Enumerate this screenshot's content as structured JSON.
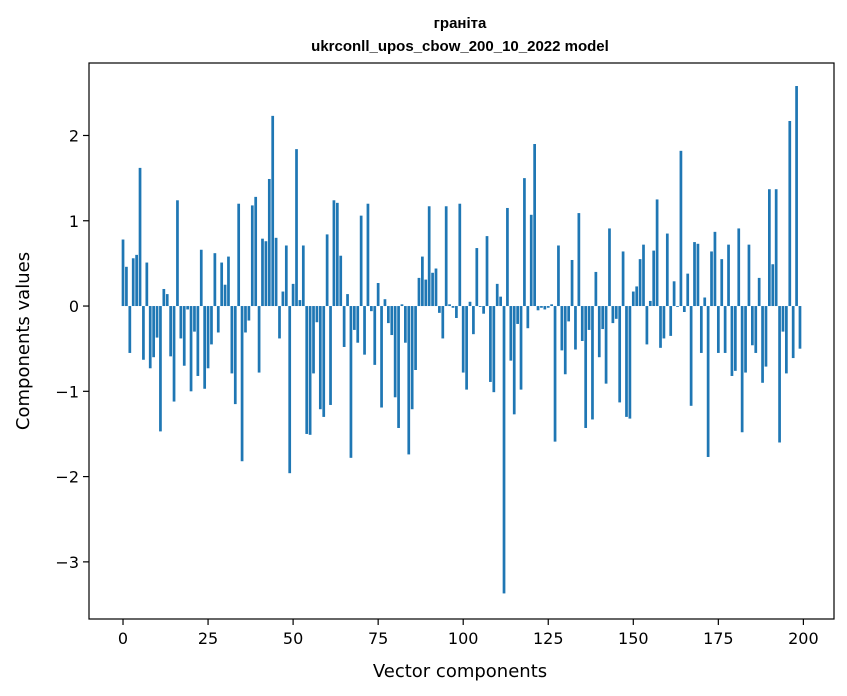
{
  "chart_data": {
    "type": "bar",
    "title_line1": "граніта",
    "title_line2": "ukrconll_upos_cbow_200_10_2022 model",
    "xlabel": "Vector components",
    "ylabel": "Components values",
    "xlim": [
      -10,
      209
    ],
    "ylim": [
      -3.67,
      2.85
    ],
    "xticks": [
      0,
      25,
      50,
      75,
      100,
      125,
      150,
      175,
      200
    ],
    "yticks": [
      -3,
      -2,
      -1,
      0,
      1,
      2
    ],
    "bar_color": "#1f77b4",
    "values": [
      0.78,
      0.46,
      -0.55,
      0.56,
      0.6,
      1.62,
      -0.63,
      0.51,
      -0.73,
      -0.6,
      -0.37,
      -1.47,
      0.2,
      0.14,
      -0.59,
      -1.12,
      1.24,
      -0.38,
      -0.7,
      -0.04,
      -1.0,
      -0.3,
      -0.82,
      0.66,
      -0.97,
      -0.73,
      -0.45,
      0.62,
      -0.31,
      0.51,
      0.25,
      0.58,
      -0.79,
      -1.15,
      1.2,
      -1.82,
      -0.31,
      -0.17,
      1.18,
      1.28,
      -0.78,
      0.79,
      0.76,
      1.49,
      2.23,
      0.8,
      -0.38,
      0.17,
      0.71,
      -1.96,
      0.26,
      1.84,
      0.07,
      0.71,
      -1.5,
      -1.51,
      -0.79,
      -0.19,
      -1.21,
      -1.3,
      0.84,
      -1.16,
      1.24,
      1.21,
      0.59,
      -0.48,
      0.14,
      -1.78,
      -0.28,
      -0.43,
      1.06,
      -0.57,
      1.2,
      -0.06,
      -0.69,
      0.27,
      -1.19,
      0.08,
      -0.2,
      -0.34,
      -1.07,
      -1.43,
      0.02,
      -0.43,
      -1.74,
      -1.21,
      -0.75,
      0.33,
      0.58,
      0.31,
      1.17,
      0.39,
      0.44,
      -0.08,
      -0.38,
      1.17,
      0.02,
      -0.02,
      -0.14,
      1.2,
      -0.78,
      -0.98,
      0.05,
      -0.33,
      0.68,
      -0.01,
      -0.09,
      0.82,
      -0.89,
      -1.01,
      0.26,
      0.11,
      -3.37,
      1.15,
      -0.64,
      -1.27,
      -0.21,
      -0.98,
      1.5,
      -0.26,
      1.07,
      1.9,
      -0.05,
      -0.02,
      -0.04,
      -0.02,
      0.02,
      -1.59,
      0.71,
      -0.52,
      -0.8,
      -0.18,
      0.54,
      -0.51,
      1.09,
      -0.41,
      -1.43,
      -0.28,
      -1.33,
      0.4,
      -0.6,
      -0.27,
      -0.91,
      0.91,
      -0.2,
      -0.15,
      -1.13,
      0.64,
      -1.3,
      -1.32,
      0.17,
      0.23,
      0.55,
      0.72,
      -0.45,
      0.06,
      0.65,
      1.25,
      -0.49,
      -0.38,
      0.85,
      -0.35,
      0.29,
      -0.01,
      1.82,
      -0.07,
      0.38,
      -1.17,
      0.75,
      0.73,
      -0.55,
      0.1,
      -1.77,
      0.64,
      0.87,
      -0.55,
      0.55,
      -0.55,
      0.72,
      -0.82,
      -0.76,
      0.91,
      -1.48,
      -0.78,
      0.72,
      -0.46,
      -0.55,
      0.33,
      -0.9,
      -0.71,
      1.37,
      0.49,
      1.37,
      -1.6,
      -0.3,
      -0.79,
      2.17,
      -0.61,
      2.58,
      -0.5
    ]
  }
}
